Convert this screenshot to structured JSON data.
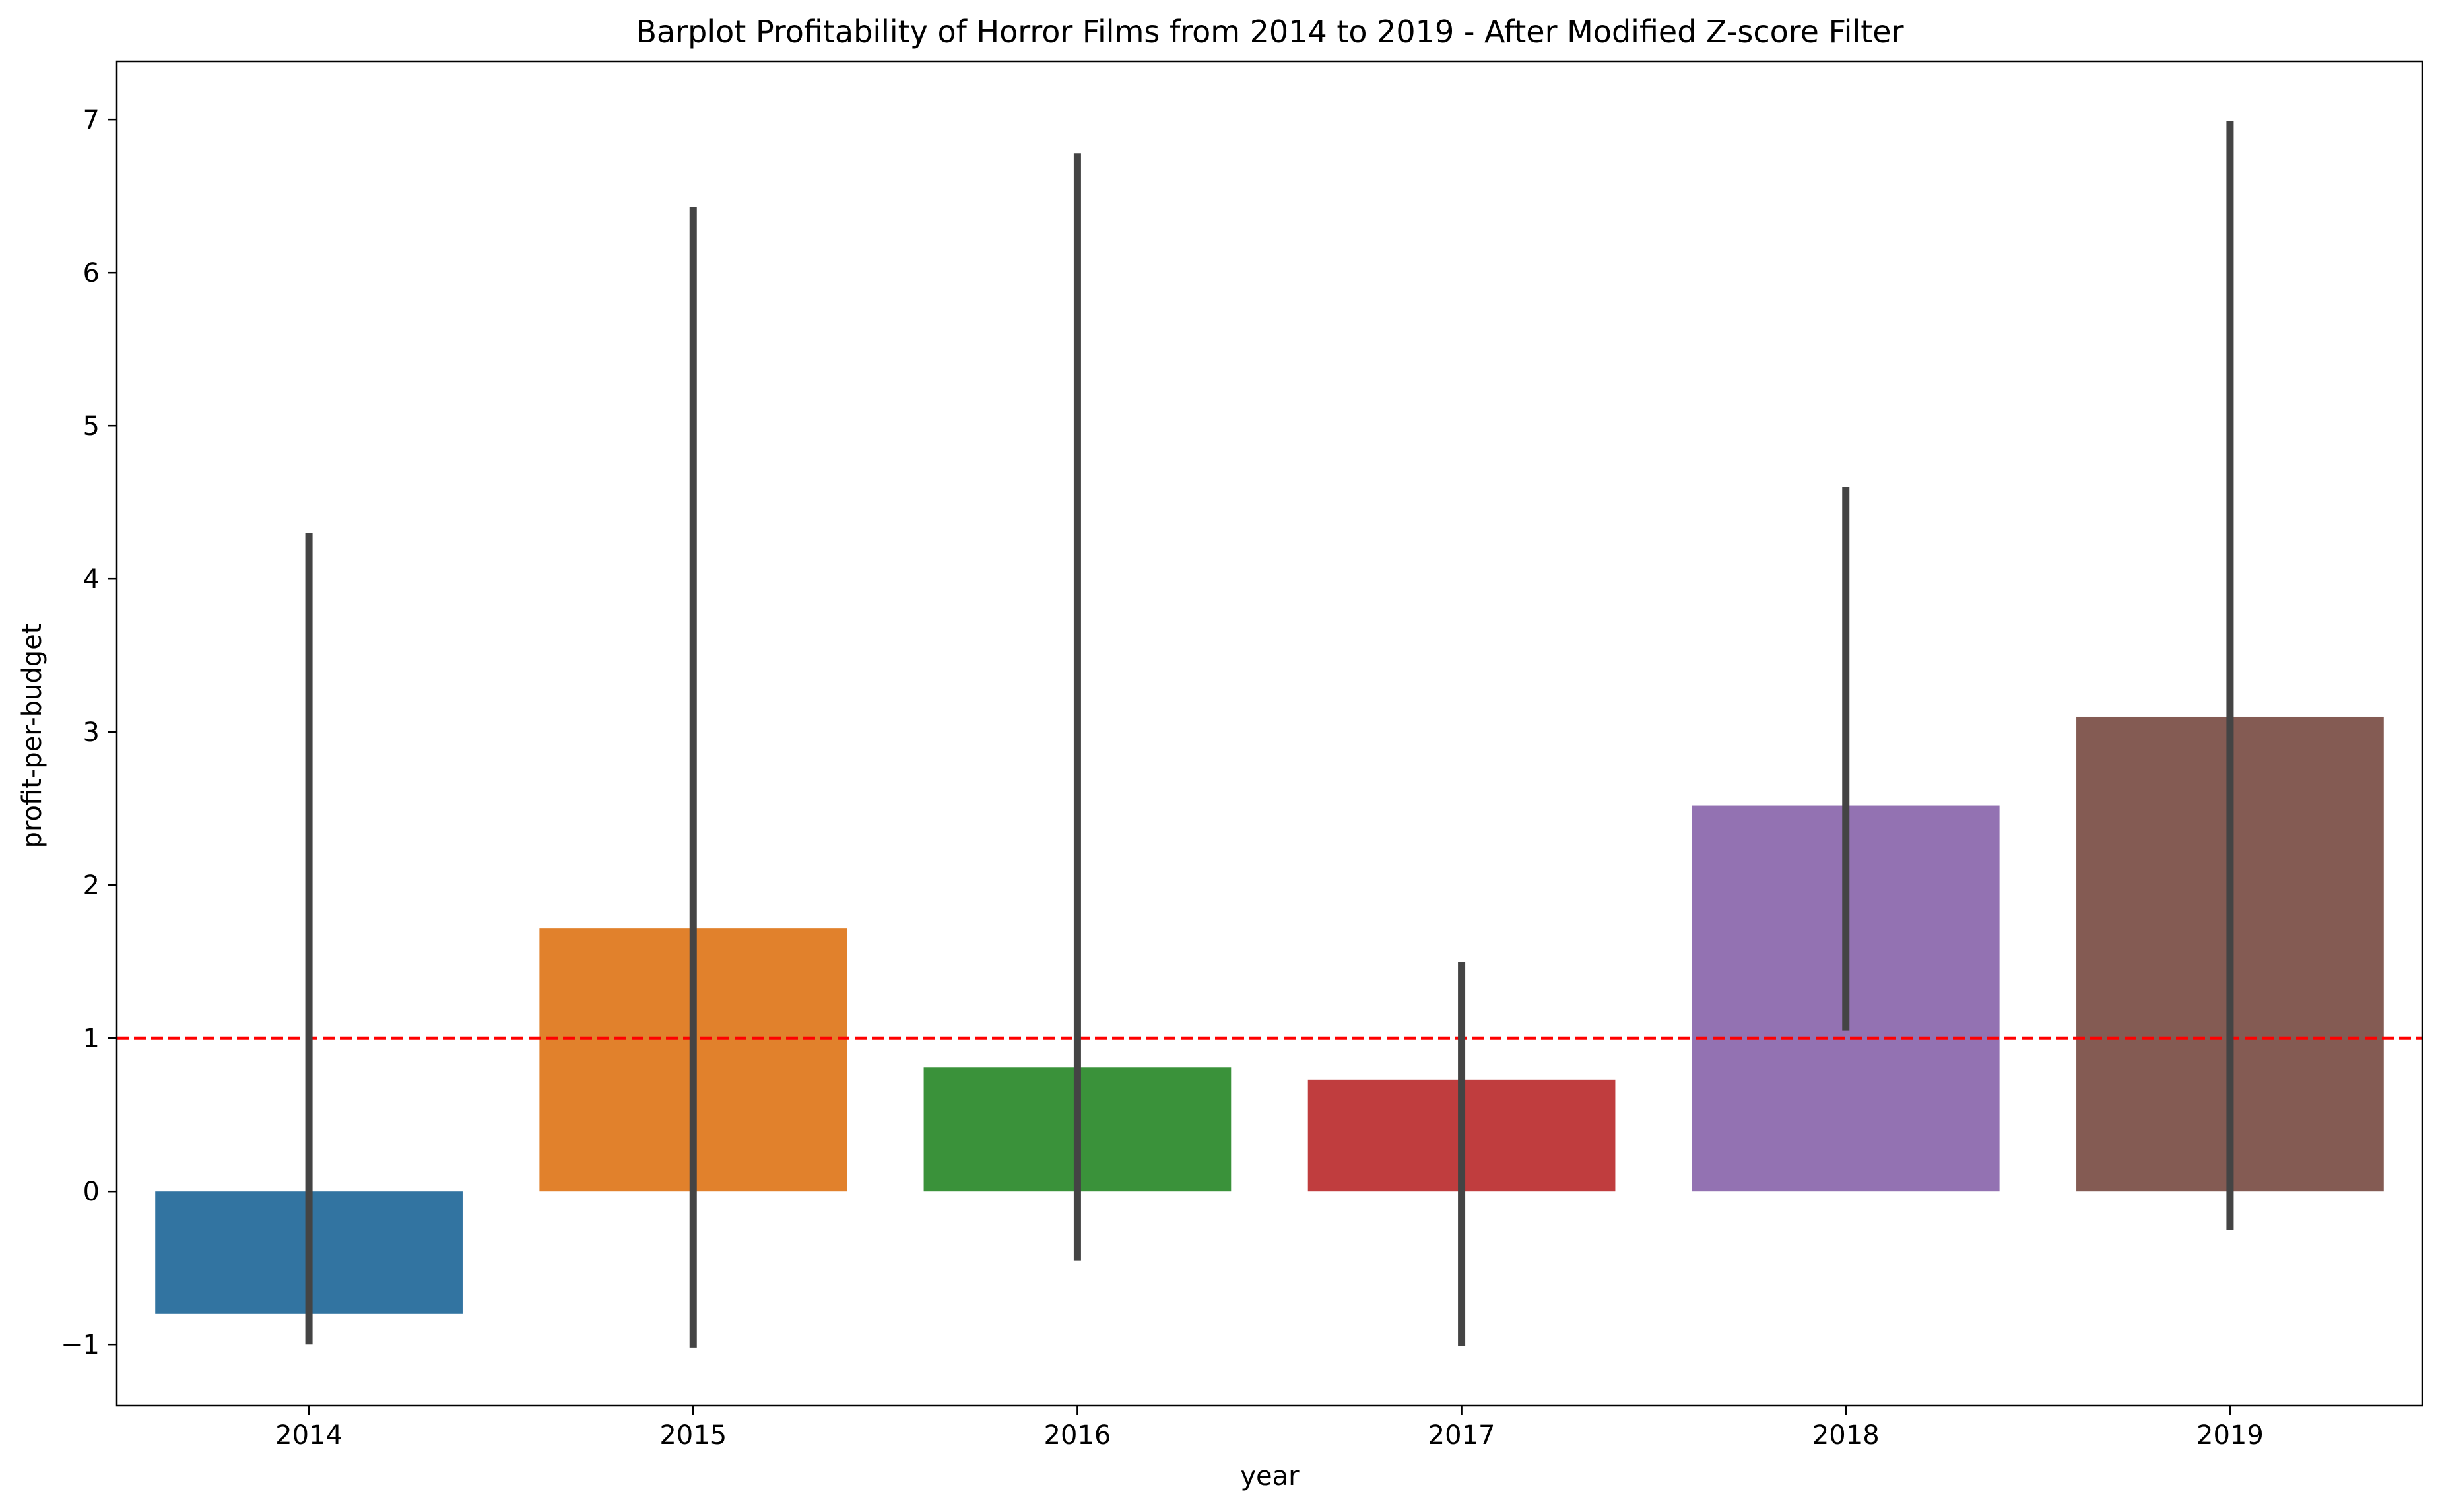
{
  "chart_data": {
    "type": "bar",
    "title": "Barplot Profitability of Horror Films from 2014 to 2019 - After Modified Z-score Filter",
    "xlabel": "year",
    "ylabel": "profit-per-budget",
    "categories": [
      "2014",
      "2015",
      "2016",
      "2017",
      "2018",
      "2019"
    ],
    "values": [
      -0.8,
      1.72,
      0.81,
      0.73,
      2.52,
      3.1
    ],
    "error_bars": [
      {
        "low": -1.0,
        "high": 4.3
      },
      {
        "low": -1.02,
        "high": 6.43
      },
      {
        "low": -0.45,
        "high": 6.78
      },
      {
        "low": -1.01,
        "high": 1.5
      },
      {
        "low": 1.05,
        "high": 4.6
      },
      {
        "low": -0.25,
        "high": 6.99
      }
    ],
    "bar_colors": [
      "#3274a1",
      "#e1812c",
      "#3a923a",
      "#c03d3e",
      "#9372b2",
      "#845b53"
    ],
    "ylim": [
      -1.4,
      7.38
    ],
    "yticks": [
      "−1",
      "0",
      "1",
      "2",
      "3",
      "4",
      "5",
      "6",
      "7"
    ],
    "ytick_values": [
      -1,
      0,
      1,
      2,
      3,
      4,
      5,
      6,
      7
    ],
    "reference_line": {
      "y": 1,
      "color": "#ff0000",
      "style": "dashed"
    },
    "error_color": "#444444",
    "grid": false,
    "legend": "none"
  }
}
